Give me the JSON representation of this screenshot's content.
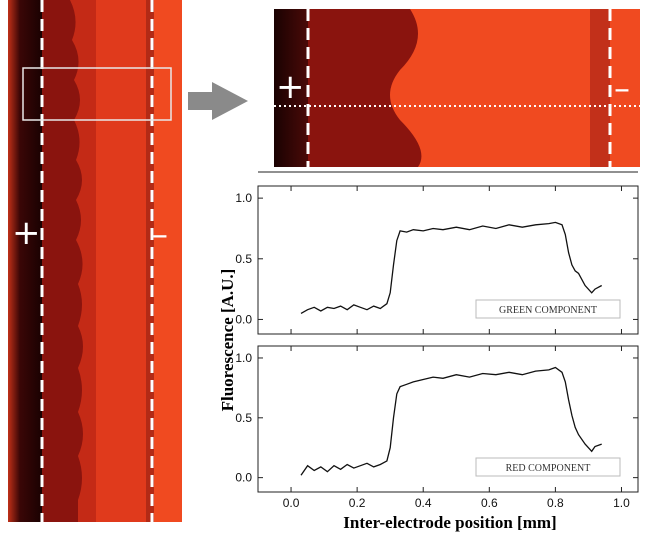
{
  "electrode_labels": {
    "left": "+",
    "right": "–"
  },
  "colors": {
    "dark_red": "#5a0c0a",
    "mid_red": "#b81c10",
    "bright_red": "#f04a20",
    "curve": "#111111"
  },
  "chart_data": [
    {
      "type": "line",
      "panel": "top",
      "legend_label": "GREEN COMPONENT",
      "xlim": [
        -0.1,
        1.05
      ],
      "ylim": [
        -0.12,
        1.1
      ],
      "xticks": [
        "0.0",
        "0.2",
        "0.4",
        "0.6",
        "0.8",
        "1.0"
      ],
      "yticks": [
        "0.0",
        "0.5",
        "1.0"
      ],
      "x": [
        0.03,
        0.05,
        0.07,
        0.09,
        0.11,
        0.13,
        0.15,
        0.17,
        0.19,
        0.21,
        0.23,
        0.25,
        0.27,
        0.29,
        0.3,
        0.31,
        0.32,
        0.33,
        0.35,
        0.37,
        0.4,
        0.43,
        0.46,
        0.5,
        0.54,
        0.58,
        0.62,
        0.66,
        0.7,
        0.74,
        0.78,
        0.8,
        0.82,
        0.83,
        0.84,
        0.85,
        0.86,
        0.87,
        0.89,
        0.91,
        0.92,
        0.94
      ],
      "y": [
        0.05,
        0.08,
        0.1,
        0.07,
        0.1,
        0.09,
        0.11,
        0.08,
        0.12,
        0.1,
        0.08,
        0.11,
        0.09,
        0.13,
        0.22,
        0.45,
        0.65,
        0.73,
        0.72,
        0.74,
        0.73,
        0.75,
        0.74,
        0.76,
        0.74,
        0.77,
        0.75,
        0.78,
        0.76,
        0.78,
        0.79,
        0.8,
        0.78,
        0.7,
        0.55,
        0.45,
        0.4,
        0.38,
        0.28,
        0.22,
        0.25,
        0.28
      ]
    },
    {
      "type": "line",
      "panel": "bottom",
      "legend_label": "RED COMPONENT",
      "xlim": [
        -0.1,
        1.05
      ],
      "ylim": [
        -0.12,
        1.1
      ],
      "xticks": [
        "0.0",
        "0.2",
        "0.4",
        "0.6",
        "0.8",
        "1.0"
      ],
      "yticks": [
        "0.0",
        "0.5",
        "1.0"
      ],
      "x": [
        0.03,
        0.05,
        0.07,
        0.09,
        0.11,
        0.13,
        0.15,
        0.17,
        0.19,
        0.21,
        0.23,
        0.25,
        0.27,
        0.29,
        0.3,
        0.31,
        0.32,
        0.33,
        0.35,
        0.37,
        0.4,
        0.43,
        0.46,
        0.5,
        0.54,
        0.58,
        0.62,
        0.66,
        0.7,
        0.74,
        0.78,
        0.8,
        0.82,
        0.83,
        0.84,
        0.85,
        0.86,
        0.87,
        0.89,
        0.91,
        0.92,
        0.94
      ],
      "y": [
        0.02,
        0.1,
        0.06,
        0.09,
        0.05,
        0.1,
        0.07,
        0.11,
        0.08,
        0.1,
        0.12,
        0.09,
        0.11,
        0.14,
        0.25,
        0.5,
        0.7,
        0.76,
        0.78,
        0.8,
        0.82,
        0.84,
        0.83,
        0.86,
        0.84,
        0.87,
        0.86,
        0.88,
        0.86,
        0.89,
        0.9,
        0.92,
        0.88,
        0.8,
        0.65,
        0.52,
        0.42,
        0.36,
        0.28,
        0.22,
        0.26,
        0.28
      ]
    }
  ],
  "axis": {
    "ylabel": "Fluorescence  [A.U.]",
    "xlabel": "Inter-electrode position [mm]"
  }
}
